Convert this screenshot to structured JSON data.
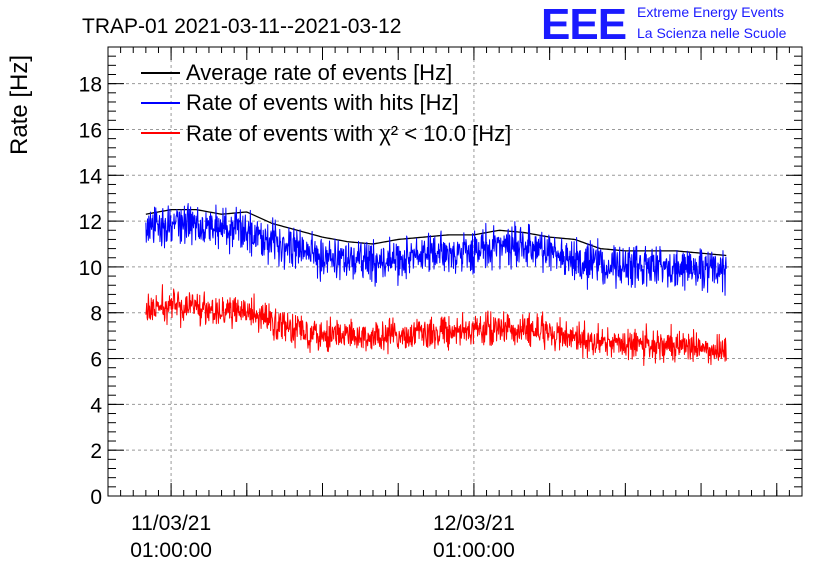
{
  "title": "TRAP-01 2021-03-11--2021-03-12",
  "logo": {
    "mark": "EEE",
    "line1": "Extreme Energy Events",
    "line2": "La Scienza nelle Scuole"
  },
  "chart_data": {
    "type": "line",
    "ylabel": "Rate [Hz]",
    "xlabel": "",
    "ylim": [
      0,
      19.6
    ],
    "yticks": [
      0,
      2,
      4,
      6,
      8,
      10,
      12,
      14,
      16,
      18
    ],
    "xlim": [
      "2021-03-10 20:00",
      "2021-03-13 03:00"
    ],
    "xticks": [
      {
        "date": "11/03/21",
        "time": "01:00:00"
      },
      {
        "date": "12/03/21",
        "time": "01:00:00"
      }
    ],
    "grid": true,
    "legend_position": "top-left",
    "series": [
      {
        "name": "Average rate of events [Hz]",
        "color": "#000000",
        "x": [
          "2021-03-10 23:00",
          "2021-03-11 01:00",
          "2021-03-11 03:00",
          "2021-03-11 05:00",
          "2021-03-11 07:00",
          "2021-03-11 09:00",
          "2021-03-11 11:00",
          "2021-03-11 13:00",
          "2021-03-11 15:00",
          "2021-03-11 17:00",
          "2021-03-11 19:00",
          "2021-03-11 21:00",
          "2021-03-11 23:00",
          "2021-03-12 01:00",
          "2021-03-12 03:00",
          "2021-03-12 05:00",
          "2021-03-12 07:00",
          "2021-03-12 09:00",
          "2021-03-12 11:00",
          "2021-03-12 13:00",
          "2021-03-12 15:00",
          "2021-03-12 17:00",
          "2021-03-12 19:00",
          "2021-03-12 21:00"
        ],
        "y": [
          12.3,
          12.5,
          12.5,
          12.3,
          12.4,
          11.9,
          11.6,
          11.3,
          11.1,
          11.0,
          11.2,
          11.3,
          11.4,
          11.4,
          11.6,
          11.5,
          11.3,
          11.2,
          10.8,
          10.7,
          10.7,
          10.7,
          10.6,
          10.5
        ]
      },
      {
        "name": "Rate of events with hits [Hz]",
        "color": "#0000ff",
        "x": [
          "2021-03-10 23:00",
          "2021-03-11 01:00",
          "2021-03-11 03:00",
          "2021-03-11 05:00",
          "2021-03-11 07:00",
          "2021-03-11 09:00",
          "2021-03-11 11:00",
          "2021-03-11 13:00",
          "2021-03-11 15:00",
          "2021-03-11 17:00",
          "2021-03-11 19:00",
          "2021-03-11 21:00",
          "2021-03-11 23:00",
          "2021-03-12 01:00",
          "2021-03-12 03:00",
          "2021-03-12 05:00",
          "2021-03-12 07:00",
          "2021-03-12 09:00",
          "2021-03-12 11:00",
          "2021-03-12 13:00",
          "2021-03-12 15:00",
          "2021-03-12 17:00",
          "2021-03-12 19:00",
          "2021-03-12 21:00"
        ],
        "y": [
          11.6,
          11.9,
          11.9,
          11.7,
          11.6,
          11.2,
          10.8,
          10.5,
          10.3,
          10.2,
          10.3,
          10.5,
          10.6,
          10.7,
          10.9,
          10.9,
          10.6,
          10.4,
          10.1,
          10.0,
          10.0,
          10.0,
          9.9,
          9.8
        ]
      },
      {
        "name": "Rate of events with χ² < 10.0 [Hz]",
        "color": "#ff0000",
        "x": [
          "2021-03-10 23:00",
          "2021-03-11 01:00",
          "2021-03-11 03:00",
          "2021-03-11 05:00",
          "2021-03-11 07:00",
          "2021-03-11 09:00",
          "2021-03-11 11:00",
          "2021-03-11 13:00",
          "2021-03-11 15:00",
          "2021-03-11 17:00",
          "2021-03-11 19:00",
          "2021-03-11 21:00",
          "2021-03-11 23:00",
          "2021-03-12 01:00",
          "2021-03-12 03:00",
          "2021-03-12 05:00",
          "2021-03-12 07:00",
          "2021-03-12 09:00",
          "2021-03-12 11:00",
          "2021-03-12 13:00",
          "2021-03-12 15:00",
          "2021-03-12 17:00",
          "2021-03-12 19:00",
          "2021-03-12 21:00"
        ],
        "y": [
          8.1,
          8.3,
          8.3,
          8.1,
          8.0,
          7.6,
          7.3,
          7.1,
          7.0,
          6.9,
          7.0,
          7.1,
          7.2,
          7.2,
          7.3,
          7.3,
          7.1,
          6.9,
          6.7,
          6.6,
          6.6,
          6.6,
          6.5,
          6.4
        ]
      }
    ]
  }
}
